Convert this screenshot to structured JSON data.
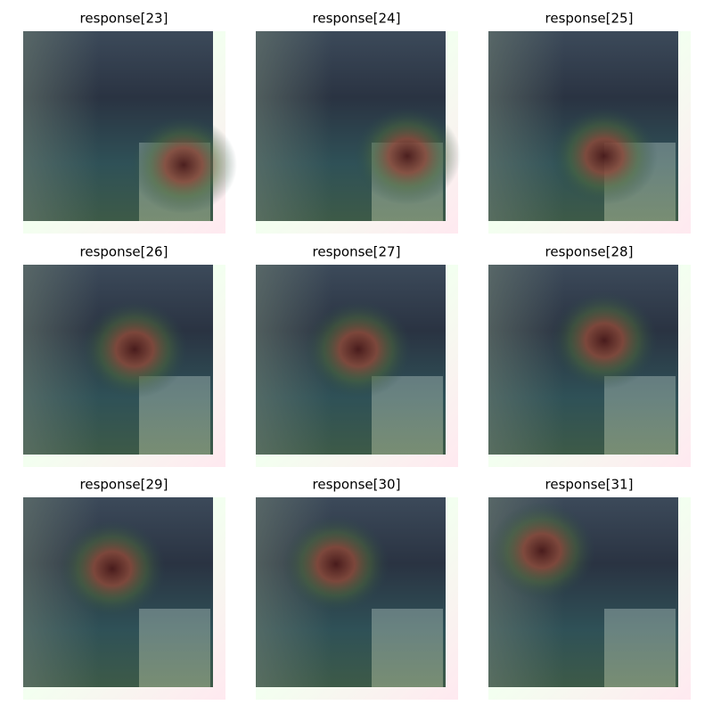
{
  "panels": [
    {
      "title": "response[23]"
    },
    {
      "title": "response[24]"
    },
    {
      "title": "response[25]"
    },
    {
      "title": "response[26]"
    },
    {
      "title": "response[27]"
    },
    {
      "title": "response[28]"
    },
    {
      "title": "response[29]"
    },
    {
      "title": "response[30]"
    },
    {
      "title": "response[31]"
    }
  ]
}
